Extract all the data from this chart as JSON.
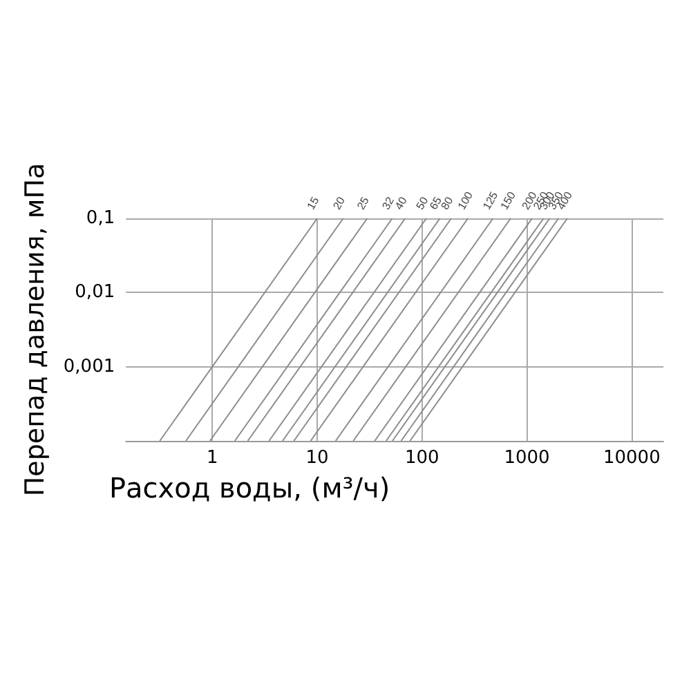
{
  "chart_data": {
    "type": "line",
    "xlabel": "Расход воды, (м³/ч)",
    "ylabel": "Перепад давления, мПа",
    "log": "xy",
    "xlim": [
      0.15,
      20000
    ],
    "ylim": [
      0.0001,
      0.1
    ],
    "xticks": [
      1,
      10,
      100,
      1000,
      10000
    ],
    "yticks": [
      {
        "value": 0.001,
        "label": "0,001"
      },
      {
        "value": 0.01,
        "label": "0,01"
      },
      {
        "value": 0.1,
        "label": "0,1"
      }
    ],
    "grid": true,
    "legend": false,
    "marker": "none",
    "line_style": "solid",
    "series": [
      {
        "name": "15",
        "color": "#8c8c8c",
        "x": [
          0.316,
          10
        ],
        "values": [
          0.0001,
          0.1
        ]
      },
      {
        "name": "20",
        "color": "#8c8c8c",
        "x": [
          0.56,
          17.7
        ],
        "values": [
          0.0001,
          0.1
        ]
      },
      {
        "name": "25",
        "color": "#8c8c8c",
        "x": [
          0.95,
          30
        ],
        "values": [
          0.0001,
          0.1
        ]
      },
      {
        "name": "32",
        "color": "#8c8c8c",
        "x": [
          1.64,
          52
        ],
        "values": [
          0.0001,
          0.1
        ]
      },
      {
        "name": "40",
        "color": "#8c8c8c",
        "x": [
          2.18,
          69
        ],
        "values": [
          0.0001,
          0.1
        ]
      },
      {
        "name": "50",
        "color": "#8c8c8c",
        "x": [
          3.48,
          110
        ],
        "values": [
          0.0001,
          0.1
        ]
      },
      {
        "name": "65",
        "color": "#8c8c8c",
        "x": [
          4.68,
          148
        ],
        "values": [
          0.0001,
          0.1
        ]
      },
      {
        "name": "80",
        "color": "#8c8c8c",
        "x": [
          6.0,
          190
        ],
        "values": [
          0.0001,
          0.1
        ]
      },
      {
        "name": "100",
        "color": "#8c8c8c",
        "x": [
          8.67,
          274
        ],
        "values": [
          0.0001,
          0.1
        ]
      },
      {
        "name": "125",
        "color": "#8c8c8c",
        "x": [
          15.0,
          475
        ],
        "values": [
          0.0001,
          0.1
        ]
      },
      {
        "name": "150",
        "color": "#8c8c8c",
        "x": [
          22.1,
          700
        ],
        "values": [
          0.0001,
          0.1
        ]
      },
      {
        "name": "200",
        "color": "#8c8c8c",
        "x": [
          35.4,
          1120
        ],
        "values": [
          0.0001,
          0.1
        ]
      },
      {
        "name": "250",
        "color": "#8c8c8c",
        "x": [
          45.5,
          1440
        ],
        "values": [
          0.0001,
          0.1
        ]
      },
      {
        "name": "300",
        "color": "#8c8c8c",
        "x": [
          52.2,
          1650
        ],
        "values": [
          0.0001,
          0.1
        ]
      },
      {
        "name": "350",
        "color": "#8c8c8c",
        "x": [
          63.2,
          2000
        ],
        "values": [
          0.0001,
          0.1
        ]
      },
      {
        "name": "400",
        "color": "#8c8c8c",
        "x": [
          76.8,
          2430
        ],
        "values": [
          0.0001,
          0.1
        ]
      }
    ]
  }
}
